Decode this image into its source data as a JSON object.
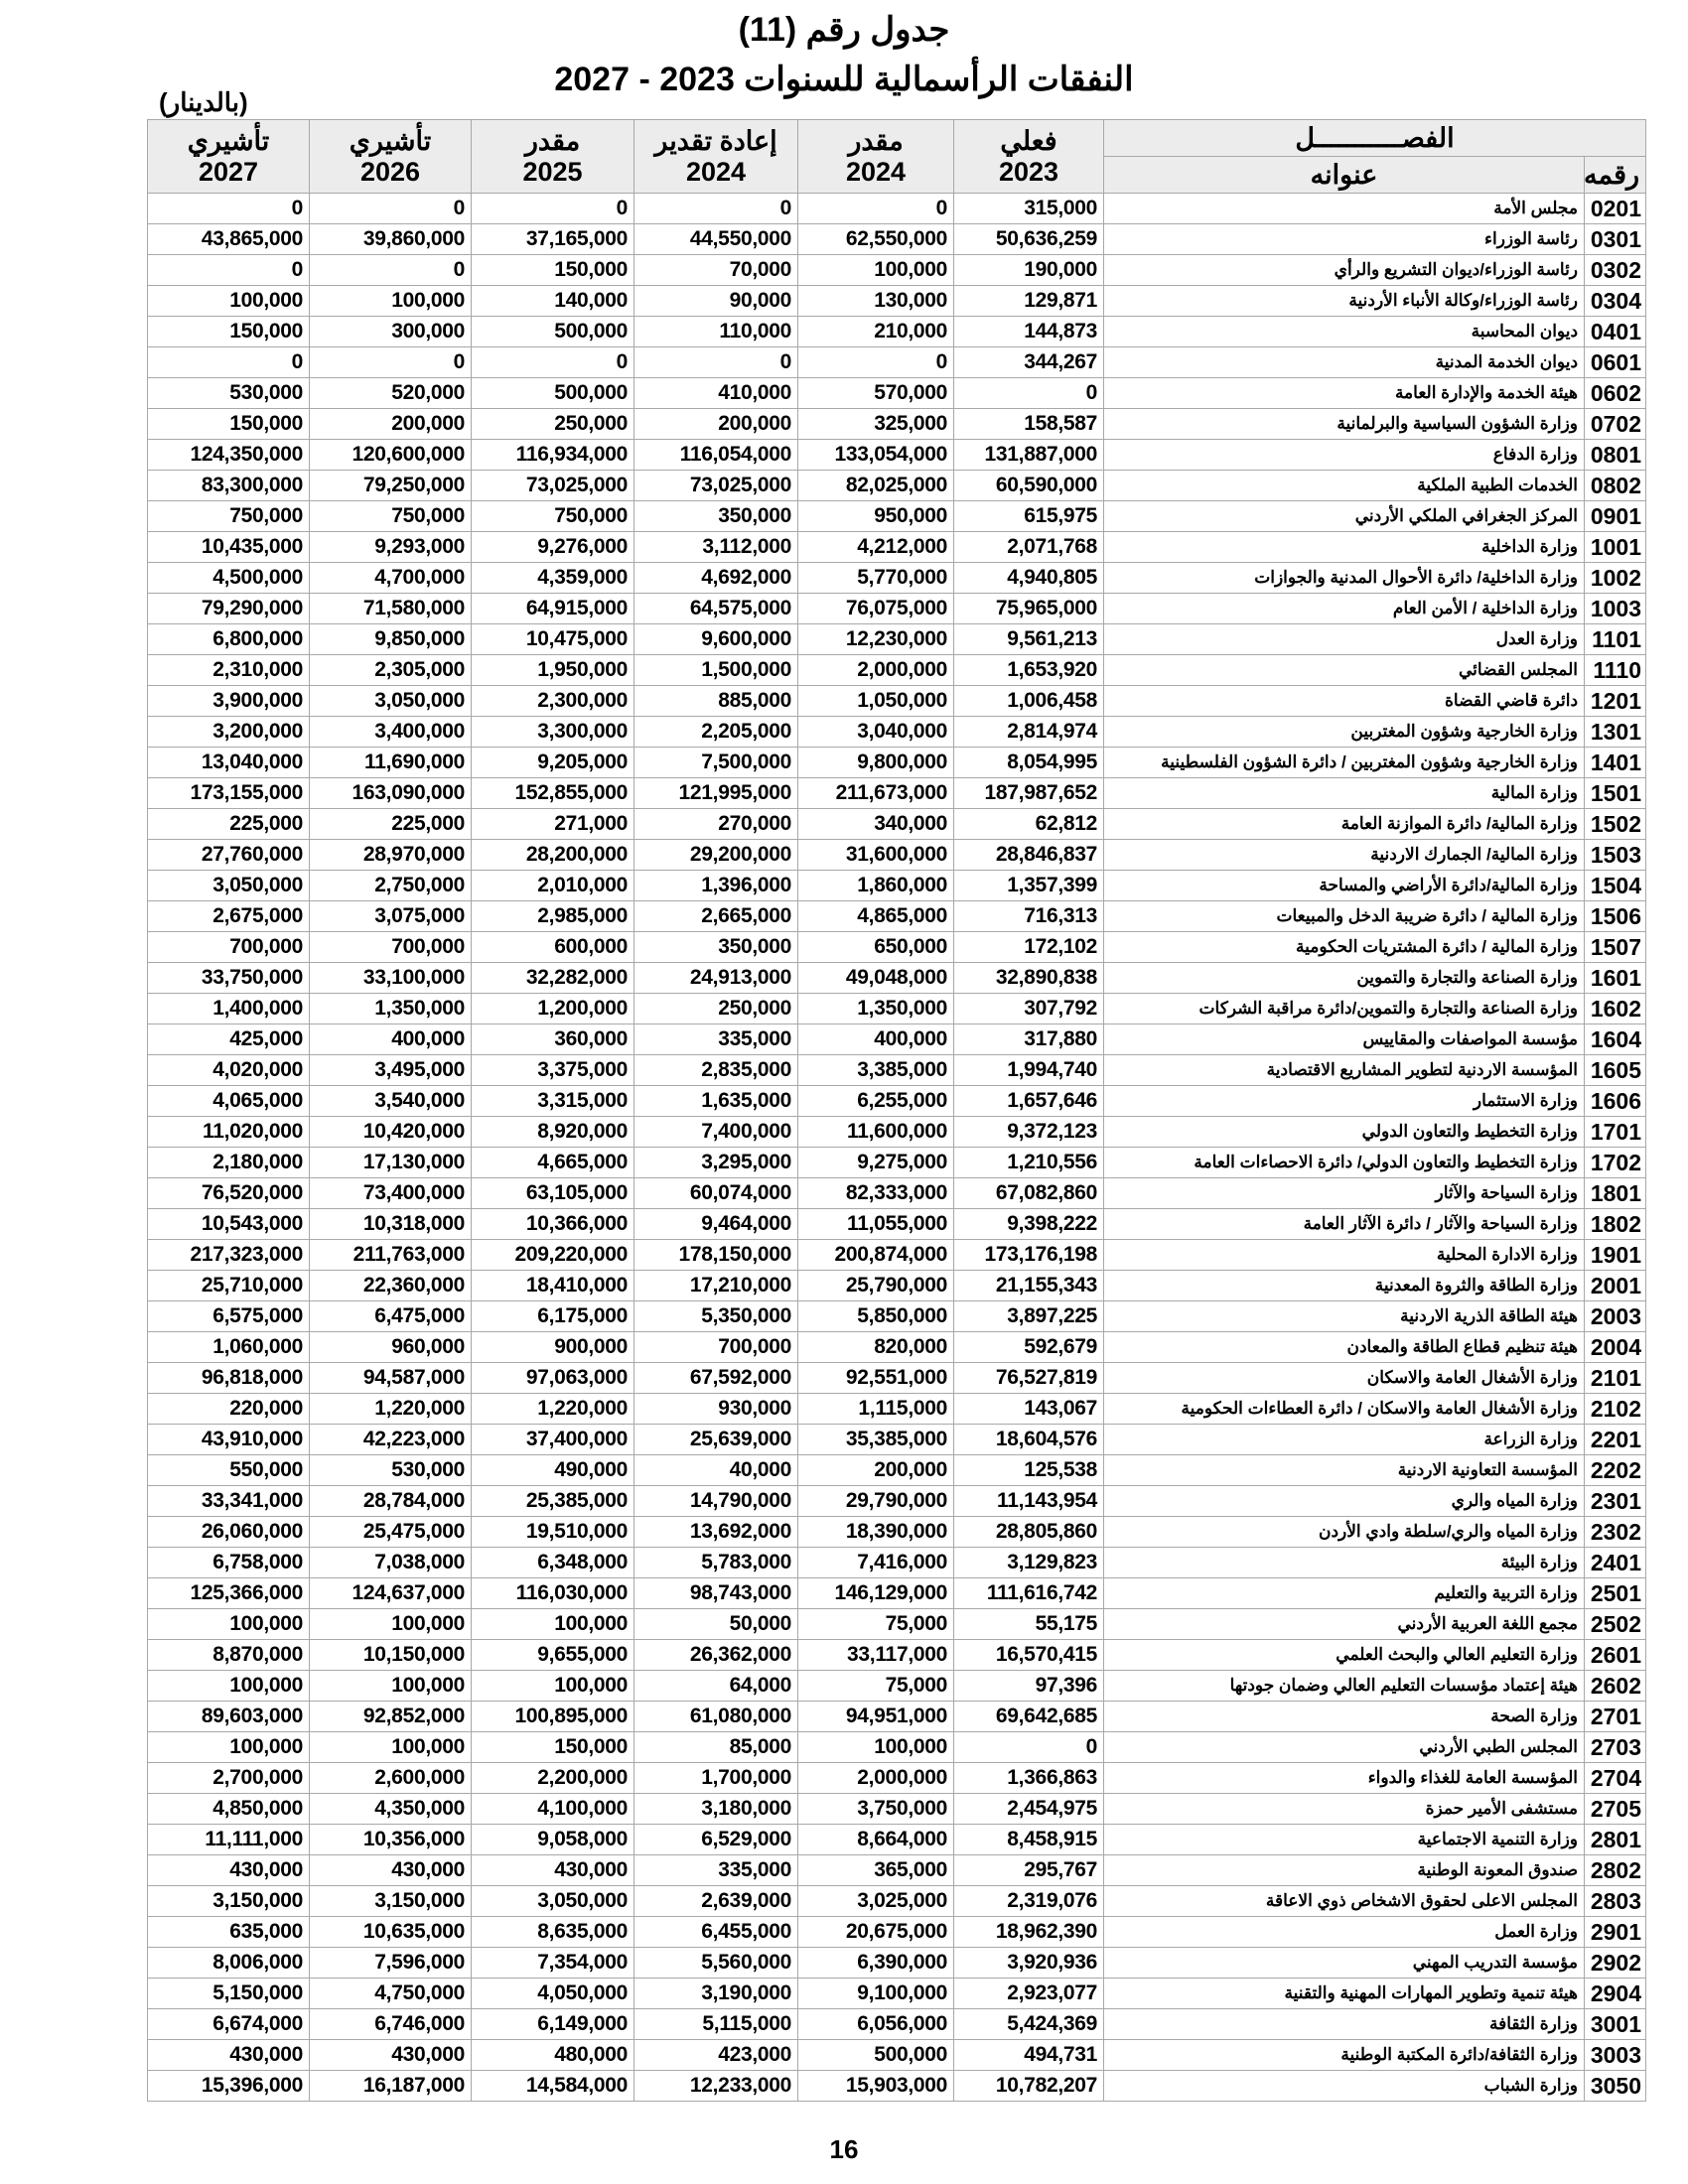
{
  "title": "جدول رقم (11)",
  "subtitle": "النفقات الرأسمالية للسنوات 2023 - 2027",
  "unit": "(بالدينار)",
  "page_number": "16",
  "header": {
    "chapter": "الفصـــــــــــل",
    "code": "رقمه",
    "name": "عنوانه",
    "columns": [
      {
        "type": "فعلي",
        "year": "2023"
      },
      {
        "type": "مقدر",
        "year": "2024"
      },
      {
        "type": "إعادة تقدير",
        "year": "2024"
      },
      {
        "type": "مقدر",
        "year": "2025"
      },
      {
        "type": "تأشيري",
        "year": "2026"
      },
      {
        "type": "تأشيري",
        "year": "2027"
      }
    ]
  },
  "rows": [
    [
      "0201",
      "مجلس الأمة",
      "315,000",
      "0",
      "0",
      "0",
      "0",
      "0"
    ],
    [
      "0301",
      "رئاسة الوزراء",
      "50,636,259",
      "62,550,000",
      "44,550,000",
      "37,165,000",
      "39,860,000",
      "43,865,000"
    ],
    [
      "0302",
      "رئاسة الوزراء/ديوان التشريع والرأي",
      "190,000",
      "100,000",
      "70,000",
      "150,000",
      "0",
      "0"
    ],
    [
      "0304",
      "رئاسة الوزراء/وكالة الأنباء الأردنية",
      "129,871",
      "130,000",
      "90,000",
      "140,000",
      "100,000",
      "100,000"
    ],
    [
      "0401",
      "ديوان المحاسبة",
      "144,873",
      "210,000",
      "110,000",
      "500,000",
      "300,000",
      "150,000"
    ],
    [
      "0601",
      "ديوان الخدمة المدنية",
      "344,267",
      "0",
      "0",
      "0",
      "0",
      "0"
    ],
    [
      "0602",
      "هيئة الخدمة والإدارة العامة",
      "0",
      "570,000",
      "410,000",
      "500,000",
      "520,000",
      "530,000"
    ],
    [
      "0702",
      "وزارة الشؤون السياسية والبرلمانية",
      "158,587",
      "325,000",
      "200,000",
      "250,000",
      "200,000",
      "150,000"
    ],
    [
      "0801",
      "وزارة الدفاع",
      "131,887,000",
      "133,054,000",
      "116,054,000",
      "116,934,000",
      "120,600,000",
      "124,350,000"
    ],
    [
      "0802",
      "الخدمات الطبية الملكية",
      "60,590,000",
      "82,025,000",
      "73,025,000",
      "73,025,000",
      "79,250,000",
      "83,300,000"
    ],
    [
      "0901",
      "المركز الجغرافي الملكي الأردني",
      "615,975",
      "950,000",
      "350,000",
      "750,000",
      "750,000",
      "750,000"
    ],
    [
      "1001",
      "وزارة الداخلية",
      "2,071,768",
      "4,212,000",
      "3,112,000",
      "9,276,000",
      "9,293,000",
      "10,435,000"
    ],
    [
      "1002",
      "وزارة الداخلية/ دائرة الأحوال المدنية والجوازات",
      "4,940,805",
      "5,770,000",
      "4,692,000",
      "4,359,000",
      "4,700,000",
      "4,500,000"
    ],
    [
      "1003",
      "وزارة الداخلية / الأمن العام",
      "75,965,000",
      "76,075,000",
      "64,575,000",
      "64,915,000",
      "71,580,000",
      "79,290,000"
    ],
    [
      "1101",
      "وزارة العدل",
      "9,561,213",
      "12,230,000",
      "9,600,000",
      "10,475,000",
      "9,850,000",
      "6,800,000"
    ],
    [
      "1110",
      "المجلس القضائي",
      "1,653,920",
      "2,000,000",
      "1,500,000",
      "1,950,000",
      "2,305,000",
      "2,310,000"
    ],
    [
      "1201",
      "دائرة قاضي القضاة",
      "1,006,458",
      "1,050,000",
      "885,000",
      "2,300,000",
      "3,050,000",
      "3,900,000"
    ],
    [
      "1301",
      "وزارة الخارجية وشؤون المغتربين",
      "2,814,974",
      "3,040,000",
      "2,205,000",
      "3,300,000",
      "3,400,000",
      "3,200,000"
    ],
    [
      "1401",
      "وزارة الخارجية وشؤون المغتربين / دائرة الشؤون الفلسطينية",
      "8,054,995",
      "9,800,000",
      "7,500,000",
      "9,205,000",
      "11,690,000",
      "13,040,000"
    ],
    [
      "1501",
      "وزارة المالية",
      "187,987,652",
      "211,673,000",
      "121,995,000",
      "152,855,000",
      "163,090,000",
      "173,155,000"
    ],
    [
      "1502",
      "وزارة المالية/ دائرة الموازنة العامة",
      "62,812",
      "340,000",
      "270,000",
      "271,000",
      "225,000",
      "225,000"
    ],
    [
      "1503",
      "وزارة المالية/ الجمارك الاردنية",
      "28,846,837",
      "31,600,000",
      "29,200,000",
      "28,200,000",
      "28,970,000",
      "27,760,000"
    ],
    [
      "1504",
      "وزارة المالية/دائرة الأراضي والمساحة",
      "1,357,399",
      "1,860,000",
      "1,396,000",
      "2,010,000",
      "2,750,000",
      "3,050,000"
    ],
    [
      "1506",
      "وزارة المالية / دائرة ضريبة الدخل والمبيعات",
      "716,313",
      "4,865,000",
      "2,665,000",
      "2,985,000",
      "3,075,000",
      "2,675,000"
    ],
    [
      "1507",
      "وزارة المالية / دائرة المشتريات الحكومية",
      "172,102",
      "650,000",
      "350,000",
      "600,000",
      "700,000",
      "700,000"
    ],
    [
      "1601",
      "وزارة الصناعة والتجارة والتموين",
      "32,890,838",
      "49,048,000",
      "24,913,000",
      "32,282,000",
      "33,100,000",
      "33,750,000"
    ],
    [
      "1602",
      "وزارة الصناعة والتجارة والتموين/دائرة مراقبة الشركات",
      "307,792",
      "1,350,000",
      "250,000",
      "1,200,000",
      "1,350,000",
      "1,400,000"
    ],
    [
      "1604",
      "مؤسسة المواصفات والمقاييس",
      "317,880",
      "400,000",
      "335,000",
      "360,000",
      "400,000",
      "425,000"
    ],
    [
      "1605",
      "المؤسسة الاردنية لتطوير المشاريع الاقتصادية",
      "1,994,740",
      "3,385,000",
      "2,835,000",
      "3,375,000",
      "3,495,000",
      "4,020,000"
    ],
    [
      "1606",
      "وزارة الاستثمار",
      "1,657,646",
      "6,255,000",
      "1,635,000",
      "3,315,000",
      "3,540,000",
      "4,065,000"
    ],
    [
      "1701",
      "وزارة التخطيط والتعاون الدولي",
      "9,372,123",
      "11,600,000",
      "7,400,000",
      "8,920,000",
      "10,420,000",
      "11,020,000"
    ],
    [
      "1702",
      "وزارة التخطيط والتعاون الدولي/ دائرة الاحصاءات العامة",
      "1,210,556",
      "9,275,000",
      "3,295,000",
      "4,665,000",
      "17,130,000",
      "2,180,000"
    ],
    [
      "1801",
      "وزارة السياحة والآثار",
      "67,082,860",
      "82,333,000",
      "60,074,000",
      "63,105,000",
      "73,400,000",
      "76,520,000"
    ],
    [
      "1802",
      "وزارة السياحة والآثار / دائرة الآثار العامة",
      "9,398,222",
      "11,055,000",
      "9,464,000",
      "10,366,000",
      "10,318,000",
      "10,543,000"
    ],
    [
      "1901",
      "وزارة الادارة المحلية",
      "173,176,198",
      "200,874,000",
      "178,150,000",
      "209,220,000",
      "211,763,000",
      "217,323,000"
    ],
    [
      "2001",
      "وزارة الطاقة والثروة المعدنية",
      "21,155,343",
      "25,790,000",
      "17,210,000",
      "18,410,000",
      "22,360,000",
      "25,710,000"
    ],
    [
      "2003",
      "هيئة الطاقة الذرية الاردنية",
      "3,897,225",
      "5,850,000",
      "5,350,000",
      "6,175,000",
      "6,475,000",
      "6,575,000"
    ],
    [
      "2004",
      "هيئة تنظيم قطاع الطاقة والمعادن",
      "592,679",
      "820,000",
      "700,000",
      "900,000",
      "960,000",
      "1,060,000"
    ],
    [
      "2101",
      "وزارة الأشغال العامة والاسكان",
      "76,527,819",
      "92,551,000",
      "67,592,000",
      "97,063,000",
      "94,587,000",
      "96,818,000"
    ],
    [
      "2102",
      "وزارة الأشغال العامة والاسكان / دائرة العطاءات الحكومية",
      "143,067",
      "1,115,000",
      "930,000",
      "1,220,000",
      "1,220,000",
      "220,000"
    ],
    [
      "2201",
      "وزارة الزراعة",
      "18,604,576",
      "35,385,000",
      "25,639,000",
      "37,400,000",
      "42,223,000",
      "43,910,000"
    ],
    [
      "2202",
      "المؤسسة التعاونية الاردنية",
      "125,538",
      "200,000",
      "40,000",
      "490,000",
      "530,000",
      "550,000"
    ],
    [
      "2301",
      "وزارة المياه والري",
      "11,143,954",
      "29,790,000",
      "14,790,000",
      "25,385,000",
      "28,784,000",
      "33,341,000"
    ],
    [
      "2302",
      "وزارة المياه والري/سلطة وادي الأردن",
      "28,805,860",
      "18,390,000",
      "13,692,000",
      "19,510,000",
      "25,475,000",
      "26,060,000"
    ],
    [
      "2401",
      "وزارة البيئة",
      "3,129,823",
      "7,416,000",
      "5,783,000",
      "6,348,000",
      "7,038,000",
      "6,758,000"
    ],
    [
      "2501",
      "وزارة التربية والتعليم",
      "111,616,742",
      "146,129,000",
      "98,743,000",
      "116,030,000",
      "124,637,000",
      "125,366,000"
    ],
    [
      "2502",
      "مجمع اللغة العربية الأردني",
      "55,175",
      "75,000",
      "50,000",
      "100,000",
      "100,000",
      "100,000"
    ],
    [
      "2601",
      "وزارة التعليم العالي والبحث العلمي",
      "16,570,415",
      "33,117,000",
      "26,362,000",
      "9,655,000",
      "10,150,000",
      "8,870,000"
    ],
    [
      "2602",
      "هيئة إعتماد مؤسسات التعليم العالي وضمان جودتها",
      "97,396",
      "75,000",
      "64,000",
      "100,000",
      "100,000",
      "100,000"
    ],
    [
      "2701",
      "وزارة الصحة",
      "69,642,685",
      "94,951,000",
      "61,080,000",
      "100,895,000",
      "92,852,000",
      "89,603,000"
    ],
    [
      "2703",
      "المجلس الطبي الأردني",
      "0",
      "100,000",
      "85,000",
      "150,000",
      "100,000",
      "100,000"
    ],
    [
      "2704",
      "المؤسسة العامة للغذاء والدواء",
      "1,366,863",
      "2,000,000",
      "1,700,000",
      "2,200,000",
      "2,600,000",
      "2,700,000"
    ],
    [
      "2705",
      "مستشفى الأمير حمزة",
      "2,454,975",
      "3,750,000",
      "3,180,000",
      "4,100,000",
      "4,350,000",
      "4,850,000"
    ],
    [
      "2801",
      "وزارة التنمية الاجتماعية",
      "8,458,915",
      "8,664,000",
      "6,529,000",
      "9,058,000",
      "10,356,000",
      "11,111,000"
    ],
    [
      "2802",
      "صندوق المعونة الوطنية",
      "295,767",
      "365,000",
      "335,000",
      "430,000",
      "430,000",
      "430,000"
    ],
    [
      "2803",
      "المجلس الاعلى لحقوق الاشخاص ذوي الاعاقة",
      "2,319,076",
      "3,025,000",
      "2,639,000",
      "3,050,000",
      "3,150,000",
      "3,150,000"
    ],
    [
      "2901",
      "وزارة العمل",
      "18,962,390",
      "20,675,000",
      "6,455,000",
      "8,635,000",
      "10,635,000",
      "635,000"
    ],
    [
      "2902",
      "مؤسسة التدريب المهني",
      "3,920,936",
      "6,390,000",
      "5,560,000",
      "7,354,000",
      "7,596,000",
      "8,006,000"
    ],
    [
      "2904",
      "هيئة تنمية وتطوير المهارات المهنية والتقنية",
      "2,923,077",
      "9,100,000",
      "3,190,000",
      "4,050,000",
      "4,750,000",
      "5,150,000"
    ],
    [
      "3001",
      "وزارة الثقافة",
      "5,424,369",
      "6,056,000",
      "5,115,000",
      "6,149,000",
      "6,746,000",
      "6,674,000"
    ],
    [
      "3003",
      "وزارة الثقافة/دائرة المكتبة الوطنية",
      "494,731",
      "500,000",
      "423,000",
      "480,000",
      "430,000",
      "430,000"
    ],
    [
      "3050",
      "وزارة الشباب",
      "10,782,207",
      "15,903,000",
      "12,233,000",
      "14,584,000",
      "16,187,000",
      "15,396,000"
    ]
  ]
}
